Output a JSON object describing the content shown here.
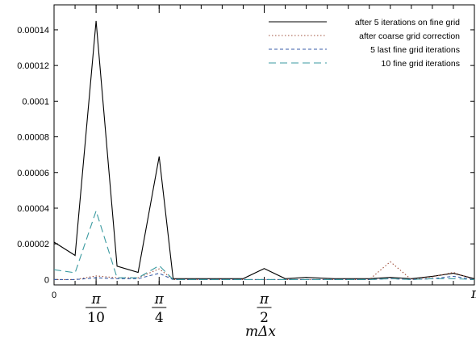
{
  "chart_data": {
    "type": "line",
    "title": "",
    "xlabel": "mΔx",
    "ylabel": "",
    "xlim": [
      0,
      3.14159
    ],
    "ylim": [
      -3e-06,
      0.000154
    ],
    "grid": false,
    "legend_position": "top-right",
    "y_ticks": [
      {
        "value": 0,
        "label": "0"
      },
      {
        "value": 2e-05,
        "label": "0.00002"
      },
      {
        "value": 4e-05,
        "label": "0.00004"
      },
      {
        "value": 6e-05,
        "label": "0.00006"
      },
      {
        "value": 8e-05,
        "label": "0.00008"
      },
      {
        "value": 0.0001,
        "label": "0.0001"
      },
      {
        "value": 0.00012,
        "label": "0.00012"
      },
      {
        "value": 0.00014,
        "label": "0.00014"
      }
    ],
    "x_major_ticks": [
      0.3142,
      0.7854,
      1.5708
    ],
    "x_tick_labels": [
      {
        "value": 0,
        "text": "0",
        "type": "plain"
      },
      {
        "value": 0.3142,
        "numerator": "π",
        "denominator": "10",
        "type": "fraction"
      },
      {
        "value": 0.7854,
        "numerator": "π",
        "denominator": "4",
        "type": "fraction"
      },
      {
        "value": 1.5708,
        "numerator": "π",
        "denominator": "2",
        "type": "fraction"
      },
      {
        "value": 3.14159,
        "text": "π",
        "type": "plain"
      }
    ],
    "series": [
      {
        "name": "after 5 iterations on fine grid",
        "color": "#000000",
        "dash": "solid",
        "x": [
          0,
          0.1571,
          0.3142,
          0.4712,
          0.6283,
          0.7854,
          0.8901,
          1.0996,
          1.2566,
          1.4137,
          1.5708,
          1.7279,
          1.885,
          2.0944,
          2.3562,
          2.5133,
          2.6704,
          2.8274,
          2.9845,
          3.14159
        ],
        "y": [
          2.1e-05,
          1.35e-05,
          0.000145,
          7.5e-06,
          4e-06,
          6.9e-05,
          5e-07,
          5e-07,
          5e-07,
          5e-07,
          6.2e-06,
          5e-07,
          1.2e-06,
          5e-07,
          5e-07,
          1.2e-06,
          5e-07,
          1.8e-06,
          3.5e-06,
          5e-07
        ]
      },
      {
        "name": "after coarse grid correction",
        "color": "#a0503c",
        "dash": "dotted",
        "x": [
          0,
          0.1571,
          0.3142,
          0.4712,
          0.6283,
          0.7854,
          0.8901,
          1.5708,
          2.0944,
          2.3562,
          2.5133,
          2.6704,
          2.8274,
          2.9845,
          3.14159
        ],
        "y": [
          0,
          0,
          2e-06,
          1e-06,
          1e-06,
          6e-06,
          0,
          0,
          0,
          0,
          1e-05,
          0,
          1.5e-06,
          4e-06,
          0
        ]
      },
      {
        "name": "5 last fine grid iterations",
        "color": "#3a5ea8",
        "dash": "short-dash",
        "x": [
          0,
          0.1571,
          0.3142,
          0.4712,
          0.6283,
          0.7854,
          0.8901,
          1.5708,
          2.0944,
          2.3562,
          2.5133,
          2.6704,
          2.8274,
          2.9845,
          3.14159
        ],
        "y": [
          0,
          0,
          1e-06,
          5e-07,
          5e-07,
          3.5e-06,
          0,
          0,
          0,
          0,
          5e-07,
          0,
          5e-07,
          1.8e-06,
          0
        ]
      },
      {
        "name": "10 fine grid iterations",
        "color": "#3b9aa0",
        "dash": "long-dash",
        "x": [
          0,
          0.1571,
          0.3142,
          0.4712,
          0.6283,
          0.7854,
          0.8901,
          1.5708,
          2.0944,
          2.3562,
          2.5133,
          2.6704,
          2.8274,
          2.9845,
          3.14159
        ],
        "y": [
          5.5e-06,
          3.8e-06,
          3.85e-05,
          1e-06,
          1e-06,
          7.8e-06,
          0,
          0,
          0,
          0,
          5e-07,
          0,
          5e-07,
          5e-07,
          0
        ]
      }
    ]
  }
}
